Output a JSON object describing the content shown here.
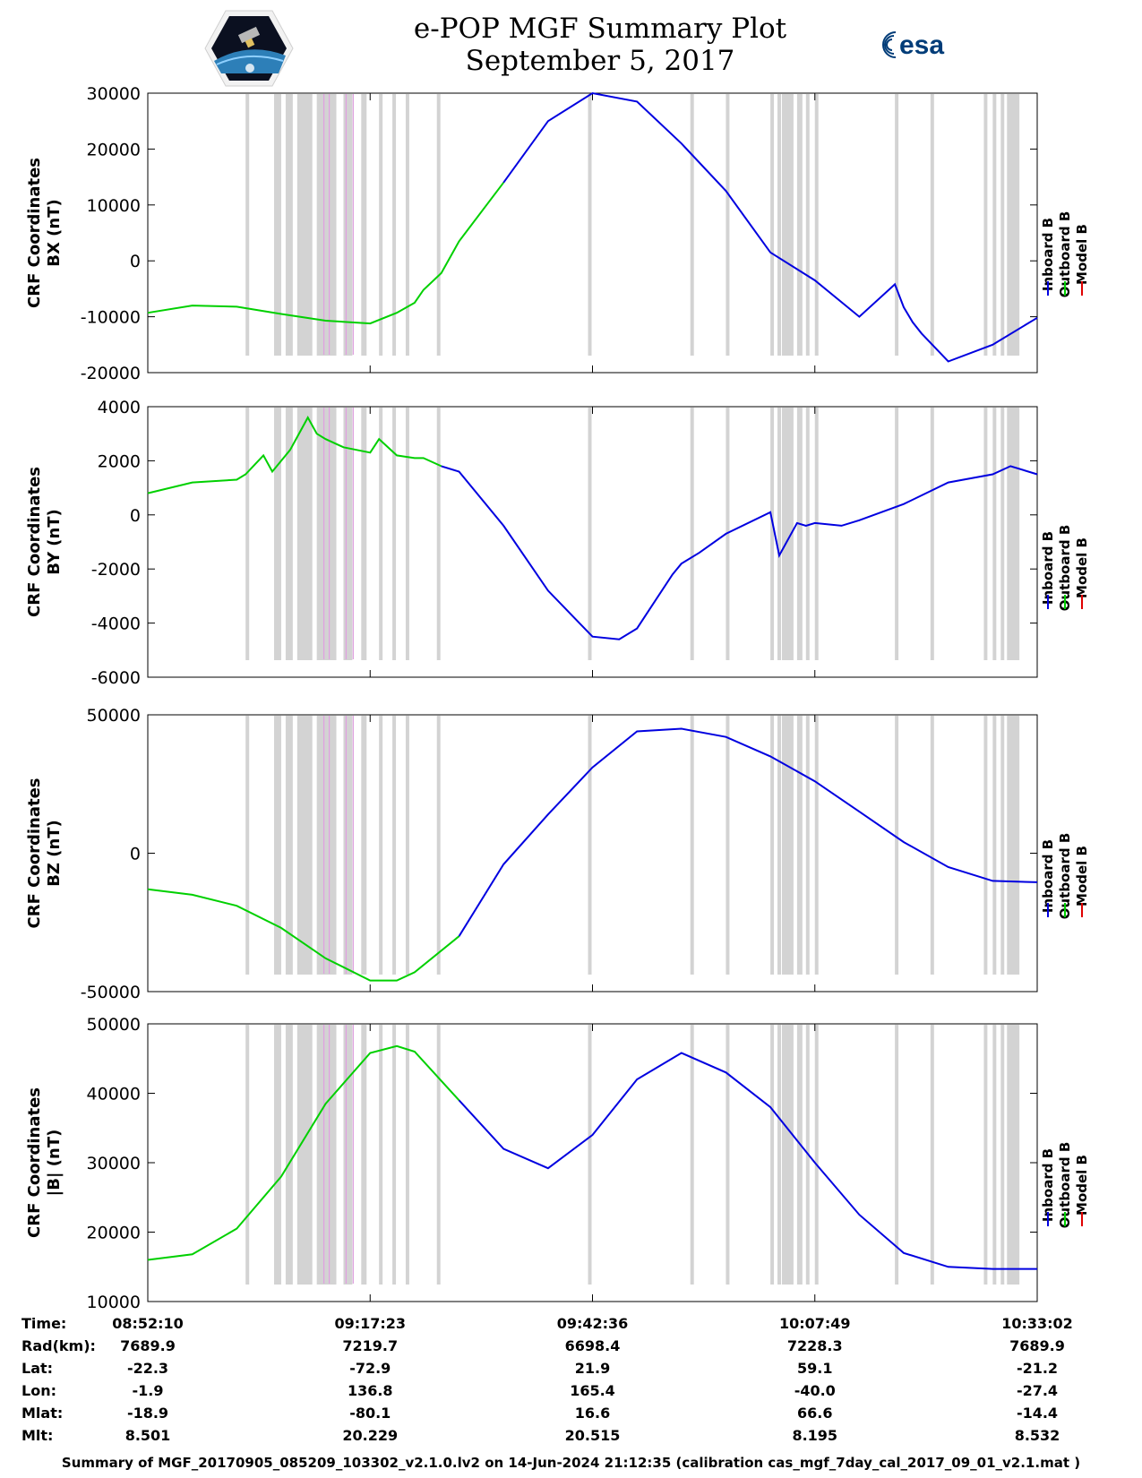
{
  "title": {
    "line1": "e-POP MGF Summary Plot",
    "line2": "September 5, 2017"
  },
  "logos": {
    "left": "CASSIOPE mission logo",
    "right": "esa"
  },
  "colors": {
    "inboard": "#0000e0",
    "outboard": "#00d000",
    "model": "#e00000",
    "shade": "#d3d3d3",
    "pink": "#e0a0e0"
  },
  "legend": [
    "Inboard B",
    "Outboard B",
    "Model B"
  ],
  "chart_data": [
    {
      "type": "line",
      "ylabel_line1": "CRF Coordinates",
      "ylabel_line2": "BX (nT)",
      "ylim": [
        -20000,
        30000
      ],
      "yticks": [
        -20000,
        -10000,
        0,
        10000,
        20000,
        30000
      ],
      "xlim": [
        0,
        100
      ],
      "switch_x": 40,
      "series": {
        "x": [
          0,
          5,
          10,
          15,
          20,
          25,
          28,
          30,
          31,
          33,
          35,
          40,
          45,
          50,
          55,
          60,
          65,
          70,
          75,
          80,
          84,
          85,
          86,
          87,
          90,
          95,
          100
        ],
        "y": [
          -9300,
          -8000,
          -8200,
          -9500,
          -10700,
          -11200,
          -9300,
          -7500,
          -5200,
          -2200,
          3500,
          14000,
          25000,
          30000,
          28500,
          21000,
          12500,
          1500,
          -3500,
          -10000,
          -4200,
          -8300,
          -11000,
          -13000,
          -18000,
          -15000,
          -10200
        ]
      }
    },
    {
      "type": "line",
      "ylabel_line1": "CRF Coordinates",
      "ylabel_line2": "BY (nT)",
      "ylim": [
        -6000,
        4000
      ],
      "yticks": [
        -6000,
        -4000,
        -2000,
        0,
        2000,
        4000
      ],
      "xlim": [
        0,
        100
      ],
      "switch_x": 34,
      "series": {
        "x": [
          0,
          5,
          10,
          11,
          13,
          14,
          16,
          18,
          19,
          20,
          22,
          25,
          26,
          28,
          30,
          31,
          33,
          35,
          40,
          45,
          50,
          53,
          55,
          57,
          59,
          60,
          62,
          65,
          70,
          71,
          73,
          74,
          75,
          78,
          80,
          85,
          90,
          95,
          97,
          100
        ],
        "y": [
          800,
          1200,
          1300,
          1500,
          2200,
          1600,
          2400,
          3600,
          3000,
          2800,
          2500,
          2300,
          2800,
          2200,
          2100,
          2100,
          1800,
          1600,
          -400,
          -2800,
          -4500,
          -4600,
          -4200,
          -3200,
          -2200,
          -1800,
          -1400,
          -700,
          100,
          -1500,
          -300,
          -400,
          -300,
          -400,
          -200,
          400,
          1200,
          1500,
          1800,
          1500
        ]
      }
    },
    {
      "type": "line",
      "ylabel_line1": "CRF Coordinates",
      "ylabel_line2": "BZ (nT)",
      "ylim": [
        -50000,
        50000
      ],
      "yticks": [
        -50000,
        0,
        50000
      ],
      "xlim": [
        0,
        100
      ],
      "switch_x": 39,
      "series": {
        "x": [
          0,
          5,
          10,
          15,
          20,
          25,
          28,
          30,
          35,
          40,
          45,
          50,
          55,
          60,
          65,
          70,
          75,
          80,
          85,
          90,
          95,
          100
        ],
        "y": [
          -13000,
          -15000,
          -19000,
          -27000,
          -38000,
          -46000,
          -46000,
          -43000,
          -30000,
          -4000,
          14000,
          31000,
          44000,
          45000,
          42000,
          35000,
          26000,
          15000,
          4000,
          -5000,
          -10000,
          -10500
        ]
      }
    },
    {
      "type": "line",
      "ylabel_line1": "CRF Coordinates",
      "ylabel_line2": "|B| (nT)",
      "ylim": [
        10000,
        50000
      ],
      "yticks": [
        10000,
        20000,
        30000,
        40000,
        50000
      ],
      "xlim": [
        0,
        100
      ],
      "switch_x": 38,
      "series": {
        "x": [
          0,
          5,
          10,
          15,
          20,
          25,
          28,
          30,
          35,
          40,
          45,
          50,
          55,
          60,
          65,
          70,
          75,
          80,
          85,
          90,
          95,
          100
        ],
        "y": [
          16000,
          16800,
          20500,
          28000,
          38500,
          45800,
          46800,
          46000,
          39000,
          32000,
          29200,
          34000,
          42000,
          45800,
          43000,
          38000,
          30000,
          22500,
          17000,
          15000,
          14700,
          14700
        ]
      }
    }
  ],
  "orbit": {
    "labels": [
      "Time:",
      "Rad(km):",
      "Lat:",
      "Lon:",
      "Mlat:",
      "Mlt:"
    ],
    "columns": [
      [
        "08:52:10",
        "7689.9",
        "-22.3",
        "-1.9",
        "-18.9",
        "8.501"
      ],
      [
        "09:17:23",
        "7219.7",
        "-72.9",
        "136.8",
        "-80.1",
        "20.229"
      ],
      [
        "09:42:36",
        "6698.4",
        "21.9",
        "165.4",
        "16.6",
        "20.515"
      ],
      [
        "10:07:49",
        "7228.3",
        "59.1",
        "-40.0",
        "66.6",
        "8.195"
      ],
      [
        "10:33:02",
        "7689.9",
        "-21.2",
        "-27.4",
        "-14.4",
        "8.532"
      ]
    ]
  },
  "footer": "Summary of MGF_20170905_085209_103302_v2.1.0.lv2 on 14-Jun-2024 21:12:35 (calibration cas_mgf_7day_cal_2017_09_01_v2.1.mat )"
}
